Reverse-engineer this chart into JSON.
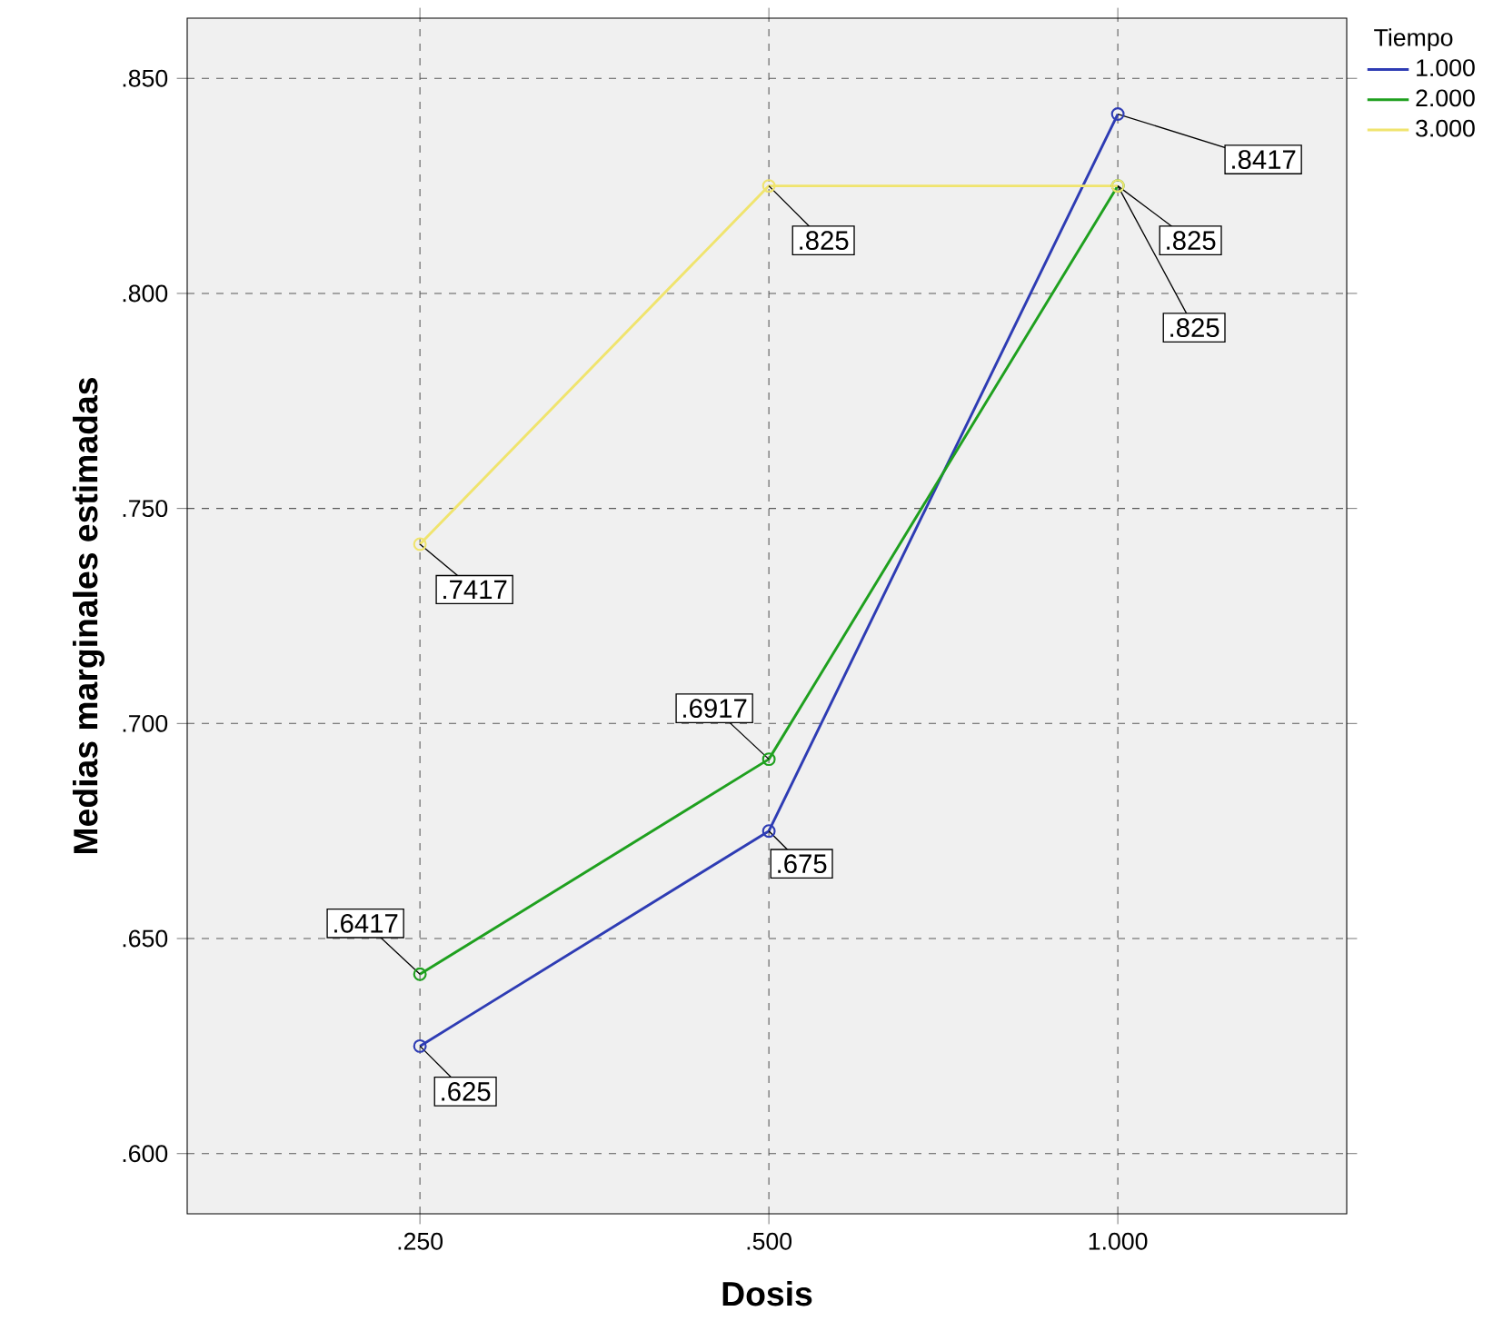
{
  "chart_data": {
    "type": "line",
    "xlabel": "Dosis",
    "ylabel": "Medias marginales estimadas",
    "legend_title": "Tiempo",
    "categories": [
      ".250",
      ".500",
      "1.000"
    ],
    "series": [
      {
        "name": "1.000",
        "color": "#2e3cb4",
        "values": [
          0.625,
          0.675,
          0.8417
        ],
        "value_labels": [
          ".625",
          ".675",
          ".8417"
        ]
      },
      {
        "name": "2.000",
        "color": "#1fa01f",
        "values": [
          0.6417,
          0.6917,
          0.825
        ],
        "value_labels": [
          ".6417",
          ".6917",
          ".825"
        ]
      },
      {
        "name": "3.000",
        "color": "#f0e46e",
        "values": [
          0.7417,
          0.825,
          0.825
        ],
        "value_labels": [
          ".7417",
          ".825",
          ".825"
        ]
      }
    ],
    "ylim": [
      0.586,
      0.864
    ],
    "yticks": [
      {
        "value": 0.6,
        "label": ".600"
      },
      {
        "value": 0.65,
        "label": ".650"
      },
      {
        "value": 0.7,
        "label": ".700"
      },
      {
        "value": 0.75,
        "label": ".750"
      },
      {
        "value": 0.8,
        "label": ".800"
      },
      {
        "value": 0.85,
        "label": ".850"
      }
    ],
    "grid": true,
    "legend": "top right",
    "marker": "circle",
    "line_style": "solid"
  }
}
